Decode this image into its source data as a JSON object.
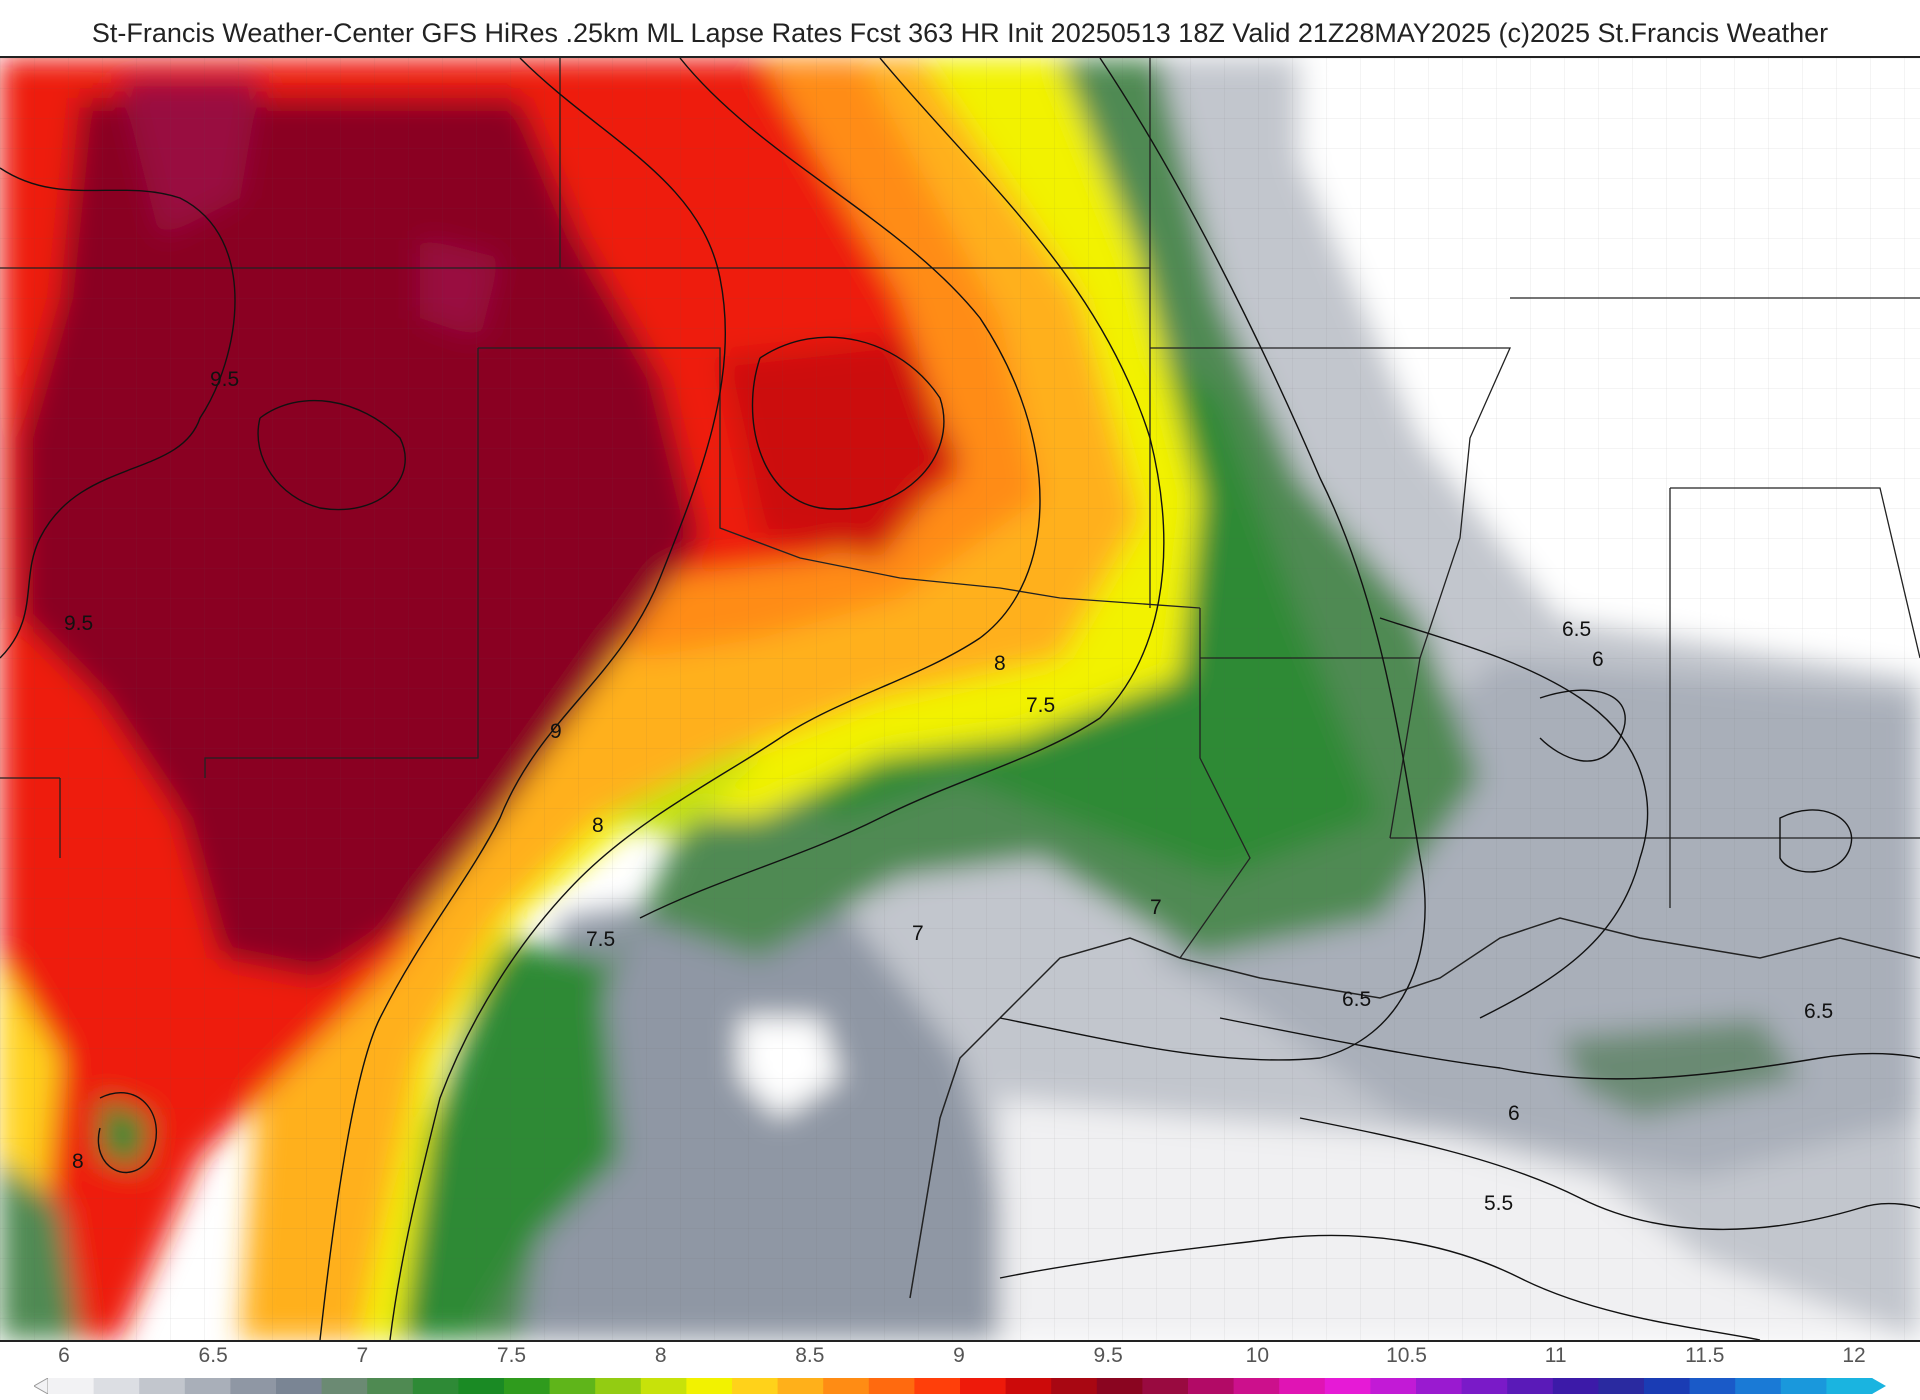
{
  "header": {
    "title": "St-Francis Weather-Center GFS HiRes .25km ML Lapse Rates  Fcst 363 HR Init 20250513 18Z  Valid 21Z28MAY2025    (c)2025 St.Francis Weather"
  },
  "map": {
    "field": "lapse-rate",
    "contour_labels": [
      "9.5",
      "9.5",
      "9",
      "8",
      "7.5",
      "8",
      "7.5",
      "7",
      "7",
      "6.5",
      "6",
      "6.5",
      "6.5",
      "6",
      "5.5",
      "8"
    ]
  },
  "legend": {
    "ticks": [
      "6",
      "6.5",
      "7",
      "7.5",
      "8",
      "8.5",
      "9",
      "9.5",
      "10",
      "10.5",
      "11",
      "11.5",
      "12"
    ],
    "colors": [
      "#f2f2f4",
      "#dcdee3",
      "#c2c6cd",
      "#a9afb9",
      "#8f97a4",
      "#7a8594",
      "#6b8a73",
      "#4f8a52",
      "#2e8a36",
      "#1a8a24",
      "#2f9b1d",
      "#5fb51a",
      "#93cc12",
      "#c7e20a",
      "#f2f200",
      "#ffd21a",
      "#ffb01a",
      "#ff8c14",
      "#ff6a0f",
      "#ff3f0a",
      "#ee1a0a",
      "#cc0a0a",
      "#a80712",
      "#8a0520",
      "#990a40",
      "#b20a66",
      "#cc108c",
      "#e014b4",
      "#e61ad6",
      "#c21ad6",
      "#9a1ad0",
      "#7a1ac8",
      "#5a1ab8",
      "#3c1aa8",
      "#2a2aa0",
      "#1a3cb4",
      "#1a5ac8",
      "#1a7ad6",
      "#1a98dc",
      "#1ab4e0"
    ]
  }
}
